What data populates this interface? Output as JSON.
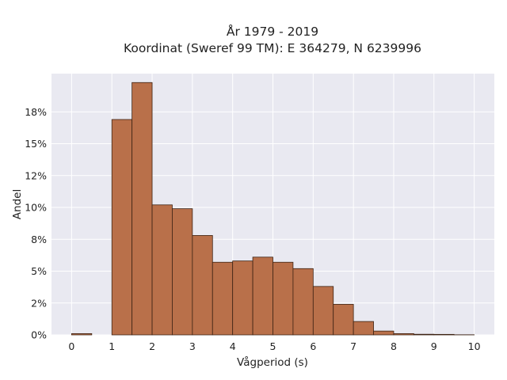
{
  "chart_data": {
    "type": "bar",
    "title_line1": "År 1979 - 2019",
    "title_line2": "Koordinat (Sweref 99 TM): E 364279, N 6239996",
    "xlabel": "Vågperiod (s)",
    "ylabel": "Andel",
    "bin_width": 0.5,
    "bin_starts": [
      0,
      0.5,
      1,
      1.5,
      2,
      2.5,
      3,
      3.5,
      4,
      4.5,
      5,
      5.5,
      6,
      6.5,
      7,
      7.5,
      8,
      8.5,
      9,
      9.5
    ],
    "values": [
      0.1,
      0,
      16.9,
      19.8,
      10.2,
      9.9,
      7.8,
      5.7,
      5.8,
      6.1,
      5.7,
      5.2,
      3.8,
      2.4,
      1.05,
      0.3,
      0.1,
      0.05,
      0.04,
      0.01
    ],
    "xticks": [
      "0",
      "1",
      "2",
      "3",
      "4",
      "5",
      "6",
      "7",
      "8",
      "9",
      "10"
    ],
    "yticks": [
      "0%",
      "2%",
      "5%",
      "8%",
      "10%",
      "12%",
      "15%",
      "18%"
    ],
    "xlim": [
      -0.5,
      10.5
    ],
    "ylim": [
      0,
      20.5
    ],
    "grid": true,
    "colors": {
      "bar_fill": "#b9704a",
      "bar_stroke": "#3d2314",
      "plot_background": "#e9e9f1",
      "grid": "#ffffff"
    }
  }
}
